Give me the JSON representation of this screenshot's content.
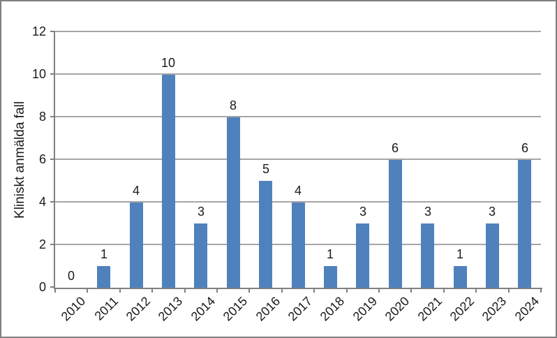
{
  "chart_data": {
    "type": "bar",
    "title": "",
    "xlabel": "",
    "ylabel": "Kliniskt anmälda fall",
    "categories": [
      "2010",
      "2011",
      "2012",
      "2013",
      "2014",
      "2015",
      "2016",
      "2017",
      "2018",
      "2019",
      "2020",
      "2021",
      "2022",
      "2023",
      "2024"
    ],
    "values": [
      0,
      1,
      4,
      10,
      3,
      8,
      5,
      4,
      1,
      3,
      6,
      3,
      1,
      3,
      6
    ],
    "data_labels_shown": true,
    "ylim": [
      0,
      12
    ],
    "ytick_step": 2,
    "ytick_labels": [
      "0",
      "2",
      "4",
      "6",
      "8",
      "10",
      "12"
    ],
    "grid": "horizontal",
    "legend": "none",
    "colors": {
      "bar": "#4F81BD",
      "gridline": "#A6A6A6",
      "axis": "#808080",
      "text": "#1a1a1a",
      "frame_border": "#808080",
      "background": "#ffffff"
    }
  }
}
